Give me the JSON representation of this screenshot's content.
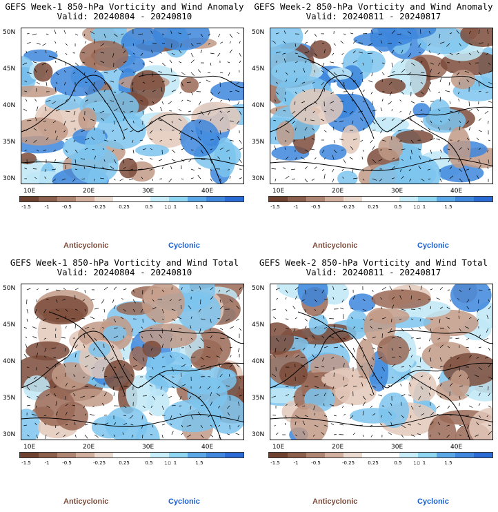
{
  "panels": [
    {
      "title_line1": "GEFS Week-1 850-hPa Vorticity and Wind Anomaly",
      "title_line2": "Valid: 20240804 - 20240810",
      "legend": {
        "anticyclonic": "Anticyclonic",
        "cyclonic": "Cyclonic"
      }
    },
    {
      "title_line1": "GEFS Week-2 850-hPa Vorticity and Wind Anomaly",
      "title_line2": "Valid: 20240811 - 20240817",
      "legend": {
        "anticyclonic": "Anticyclonic",
        "cyclonic": "Cyclonic"
      }
    },
    {
      "title_line1": "GEFS Week-1 850-hPa Vorticity and Wind Total",
      "title_line2": "Valid: 20240804 - 20240810",
      "legend": {
        "anticyclonic": "Anticyclonic",
        "cyclonic": "Cyclonic"
      }
    },
    {
      "title_line1": "GEFS Week-2 850-hPa Vorticity and Wind Total",
      "title_line2": "Valid: 20240811 - 20240817",
      "legend": {
        "anticyclonic": "Anticyclonic",
        "cyclonic": "Cyclonic"
      }
    }
  ],
  "map": {
    "lat_labels": [
      "50N",
      "45N",
      "40N",
      "35N",
      "30N"
    ],
    "lon_labels": [
      "10E",
      "20E",
      "30E",
      "40E"
    ]
  },
  "colorbar": {
    "colors": [
      "#6e4131",
      "#8d5f4d",
      "#b08774",
      "#d2b1a1",
      "#ecdbd1",
      "#ffffff",
      "#ffffff",
      "#c7eef9",
      "#8fd6f2",
      "#5aa8e8",
      "#3f88dd",
      "#2a6bd6"
    ],
    "ticks": [
      "-1.5",
      "-1",
      "-0.5",
      "-0.25",
      "0.25",
      "0.5",
      "1",
      "1.5"
    ],
    "scale_mark": "10"
  }
}
